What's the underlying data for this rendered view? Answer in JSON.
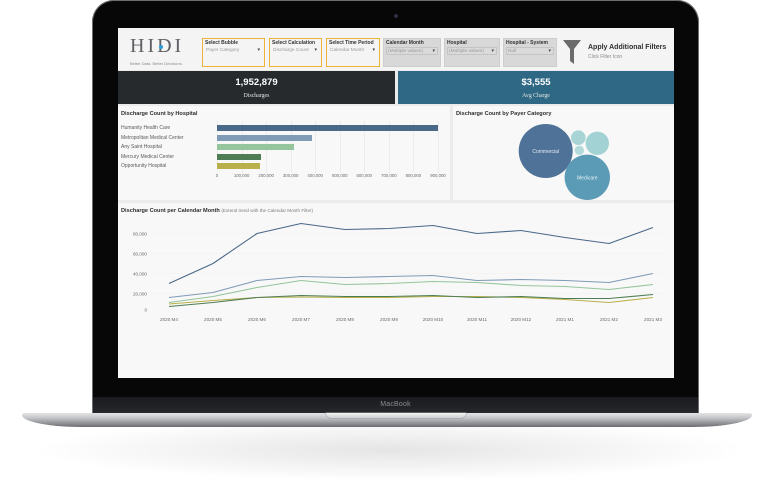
{
  "device": {
    "brand_label": "MacBook"
  },
  "header": {
    "logo": {
      "text": "HIDI",
      "tagline": "Better Data. Better Decisions."
    },
    "filters": [
      {
        "label": "Select Bubble",
        "value": "Payer Category"
      },
      {
        "label": "Select Calculation",
        "value": "Discharge Count"
      },
      {
        "label": "Select Time Period",
        "value": "Calendar Month"
      },
      {
        "label": "Calendar Month",
        "value": "(Multiple values)"
      },
      {
        "label": "Hospital",
        "value": "(Multiple values)"
      },
      {
        "label": "Hospital - System",
        "value": "Null"
      }
    ],
    "caret": "▾",
    "apply_filters": {
      "title": "Apply Additional Filters",
      "subtitle": "Click Filter Icon",
      "icon": "filter-funnel-icon"
    }
  },
  "kpis": [
    {
      "value": "1,952,879",
      "label": "Discharges",
      "color": "#262a2d"
    },
    {
      "value": "$3,555",
      "label": "Avg Charge",
      "color": "#2f6884"
    }
  ],
  "chart_data": [
    {
      "type": "bar",
      "orientation": "horizontal",
      "title": "Discharge Count by Hospital",
      "categories": [
        "Humanity Health Care",
        "Metropolitan Medical Center",
        "Any Saint Hospital",
        "Mercury Medical Center",
        "Opportunity Hospital"
      ],
      "values": [
        900000,
        386000,
        314000,
        180000,
        176000
      ],
      "colors": [
        "#4a6889",
        "#7f9bb6",
        "#95c59c",
        "#4e7d55",
        "#b9b04c"
      ],
      "xlabel": "",
      "ylabel": "",
      "xlim": [
        0,
        900000
      ],
      "xticks": [
        "0",
        "100,000",
        "200,000",
        "300,000",
        "400,000",
        "500,000",
        "600,000",
        "700,000",
        "800,000",
        "900,000"
      ],
      "grid": true,
      "legend": null
    },
    {
      "type": "scatter",
      "variant": "packed-bubble",
      "title": "Discharge Count by Payer Category",
      "points": [
        {
          "label": "Commercial",
          "value": 978000,
          "color": "#4f7398"
        },
        {
          "label": "Medicare",
          "value": 691000,
          "color": "#5b9bb6"
        },
        {
          "label": "",
          "value": 184000,
          "color": "#a3d2d4"
        },
        {
          "label": "",
          "value": 71000,
          "color": "#a8d4d5"
        },
        {
          "label": "",
          "value": 30000,
          "color": "#b4dbdb"
        }
      ],
      "legend": null
    },
    {
      "type": "line",
      "title": "Discharge Count per Calendar Month",
      "subtitle": "(Extend trend with the Calendar Month Filter)",
      "x": [
        "2020 M4",
        "2020 M5",
        "2020 M6",
        "2020 M7",
        "2020 M8",
        "2020 M9",
        "2020 M10",
        "2020 M11",
        "2020 M12",
        "2021 M1",
        "2021 M2",
        "2021 M3"
      ],
      "series": [
        {
          "name": "Humanity Health Care",
          "color": "#4a6889",
          "values": [
            30000,
            50000,
            80000,
            90000,
            84000,
            85000,
            88000,
            80000,
            83000,
            76000,
            70000,
            86000
          ]
        },
        {
          "name": "Metropolitan Medical Center",
          "color": "#7f9bb6",
          "values": [
            16000,
            21000,
            33000,
            37000,
            36000,
            37000,
            38000,
            33000,
            34000,
            33000,
            31000,
            40000
          ]
        },
        {
          "name": "Any Saint Hospital",
          "color": "#95c59c",
          "values": [
            11000,
            17000,
            26000,
            33000,
            29000,
            30000,
            32000,
            31000,
            28000,
            27000,
            24000,
            29000
          ]
        },
        {
          "name": "Mercury Medical Center",
          "color": "#4e7d55",
          "values": [
            7000,
            11000,
            16000,
            18000,
            17000,
            17000,
            18000,
            16000,
            17000,
            15000,
            15000,
            19000
          ]
        },
        {
          "name": "Opportunity Hospital",
          "color": "#b9b04c",
          "values": [
            9500,
            13000,
            16000,
            16500,
            16000,
            16000,
            17000,
            17000,
            16000,
            14000,
            11000,
            16000
          ]
        }
      ],
      "xlabel": "",
      "ylabel": "",
      "ylim": [
        0,
        90000
      ],
      "yticks": [
        "80,000",
        "60,000",
        "40,000",
        "20,000",
        "0"
      ],
      "grid": true,
      "legend": null
    }
  ]
}
